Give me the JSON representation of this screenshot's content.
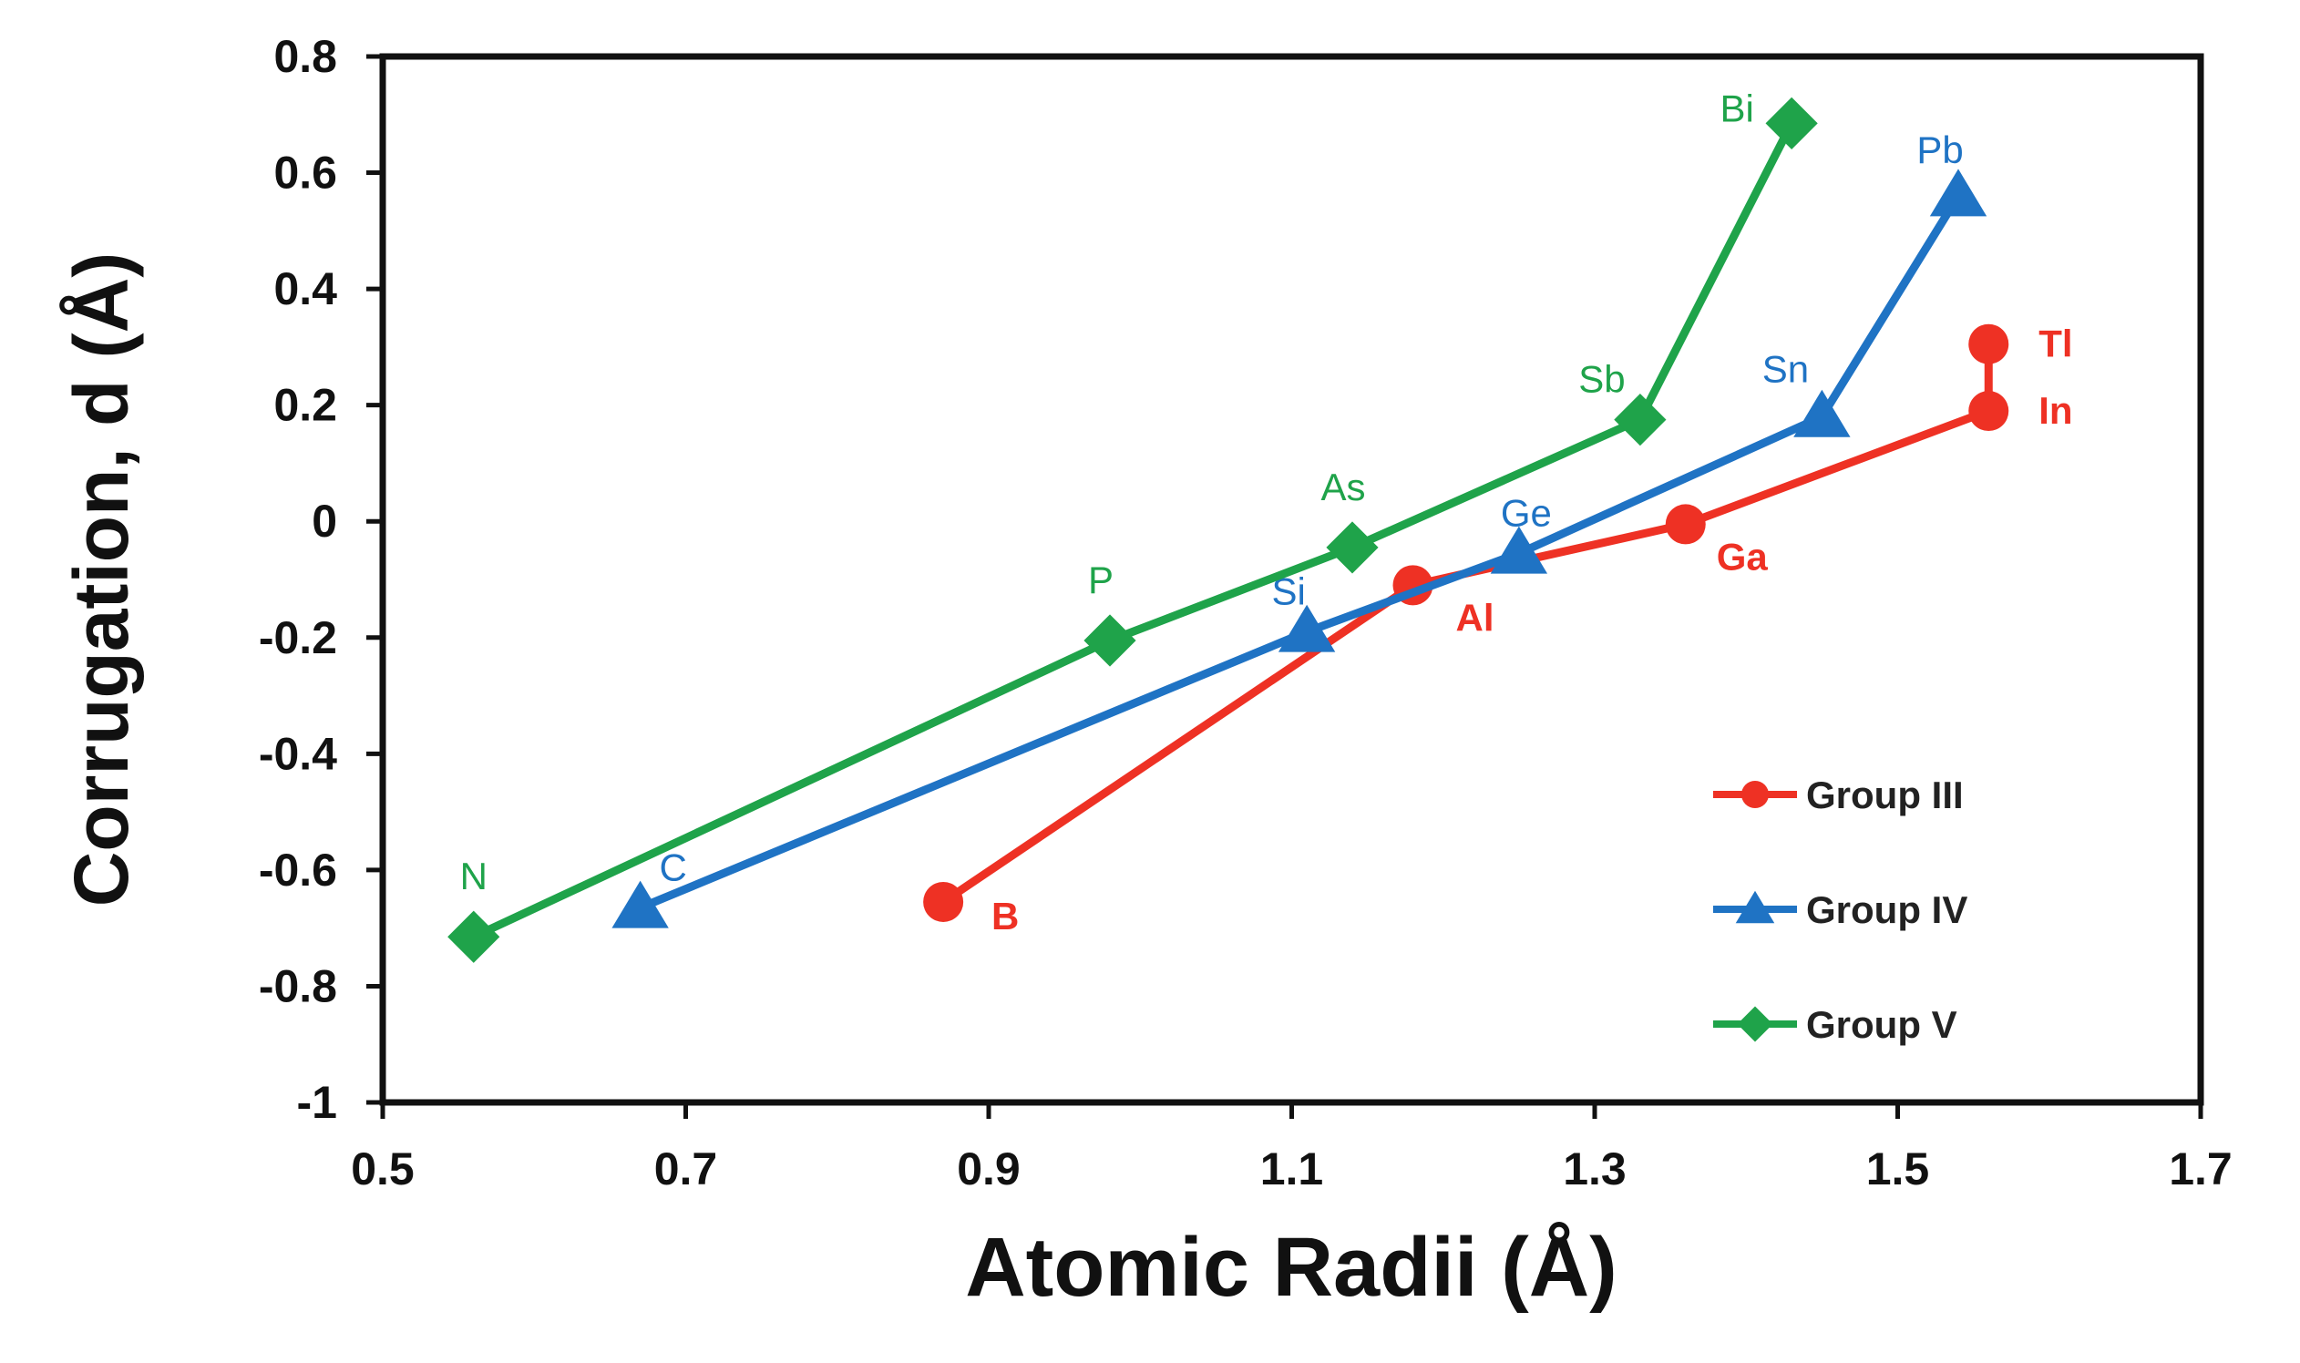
{
  "chart_data": {
    "type": "line",
    "xlabel": "Atomic Radii (Å)",
    "ylabel": "Corrugation, d (Å)",
    "xlim": [
      0.5,
      1.7
    ],
    "ylim": [
      -1,
      0.8
    ],
    "x_ticks": [
      "0.5",
      "0.7",
      "0.9",
      "1.1",
      "1.3",
      "1.5",
      "1.7"
    ],
    "y_ticks": [
      "0.8",
      "0.6",
      "0.4",
      "0.2",
      "0",
      "-0.2",
      "-0.4",
      "-0.6",
      "-0.8",
      "-1"
    ],
    "grid": false,
    "legend_position": "bottom-right",
    "series": [
      {
        "name": "Group III",
        "color": "#ee3124",
        "marker": "circle",
        "points": [
          {
            "label": "B",
            "x": 0.87,
            "y": -0.655
          },
          {
            "label": "Al",
            "x": 1.18,
            "y": -0.11
          },
          {
            "label": "Ga",
            "x": 1.36,
            "y": -0.005
          },
          {
            "label": "In",
            "x": 1.56,
            "y": 0.19
          },
          {
            "label": "Tl",
            "x": 1.56,
            "y": 0.305
          }
        ]
      },
      {
        "name": "Group IV",
        "color": "#1f73c4",
        "marker": "triangle",
        "points": [
          {
            "label": "C",
            "x": 0.67,
            "y": -0.665
          },
          {
            "label": "Si",
            "x": 1.11,
            "y": -0.19
          },
          {
            "label": "Ge",
            "x": 1.25,
            "y": -0.055
          },
          {
            "label": "Sn",
            "x": 1.45,
            "y": 0.18
          },
          {
            "label": "Pb",
            "x": 1.54,
            "y": 0.56
          }
        ]
      },
      {
        "name": "Group V",
        "color": "#1fa34a",
        "marker": "diamond",
        "points": [
          {
            "label": "N",
            "x": 0.56,
            "y": -0.715
          },
          {
            "label": "P",
            "x": 0.98,
            "y": -0.205
          },
          {
            "label": "As",
            "x": 1.14,
            "y": -0.045
          },
          {
            "label": "Sb",
            "x": 1.33,
            "y": 0.175
          },
          {
            "label": "Bi",
            "x": 1.43,
            "y": 0.685
          }
        ]
      }
    ]
  }
}
